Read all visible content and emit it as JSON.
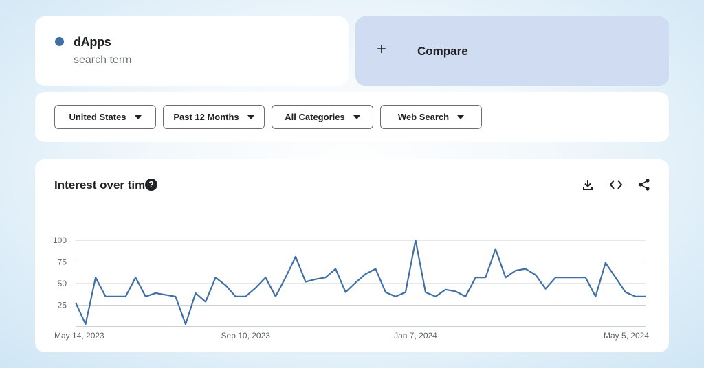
{
  "search_term": {
    "name": "dApps",
    "subtitle": "search term",
    "color": "#3f6fa3"
  },
  "compare": {
    "label": "Compare",
    "icon": "plus-icon"
  },
  "filters": [
    {
      "label": "United States"
    },
    {
      "label": "Past 12 Months"
    },
    {
      "label": "All Categories"
    },
    {
      "label": "Web Search"
    }
  ],
  "chart_panel": {
    "title": "Interest over time",
    "help_icon": "help-icon",
    "tools": [
      "download-icon",
      "embed-code-icon",
      "share-icon"
    ]
  },
  "chart_data": {
    "type": "line",
    "ylim": [
      0,
      100
    ],
    "yticks": [
      25,
      50,
      75,
      100
    ],
    "xtick_labels": [
      "May 14, 2023",
      "Sep 10, 2023",
      "Jan 7, 2024",
      "May 5, 2024"
    ],
    "xtick_indices": [
      0,
      17,
      34,
      51
    ],
    "grid": true,
    "series": [
      {
        "color": "#3f6fa3",
        "values": [
          28,
          3,
          57,
          35,
          35,
          35,
          57,
          35,
          39,
          37,
          35,
          3,
          39,
          29,
          57,
          48,
          35,
          35,
          45,
          57,
          35,
          57,
          81,
          52,
          55,
          57,
          67,
          40,
          51,
          61,
          67,
          40,
          35,
          40,
          100,
          40,
          35,
          43,
          41,
          35,
          57,
          57,
          90,
          57,
          65,
          67,
          60,
          44,
          57,
          57,
          57,
          57,
          35,
          74,
          57,
          40,
          35,
          35
        ]
      }
    ]
  }
}
